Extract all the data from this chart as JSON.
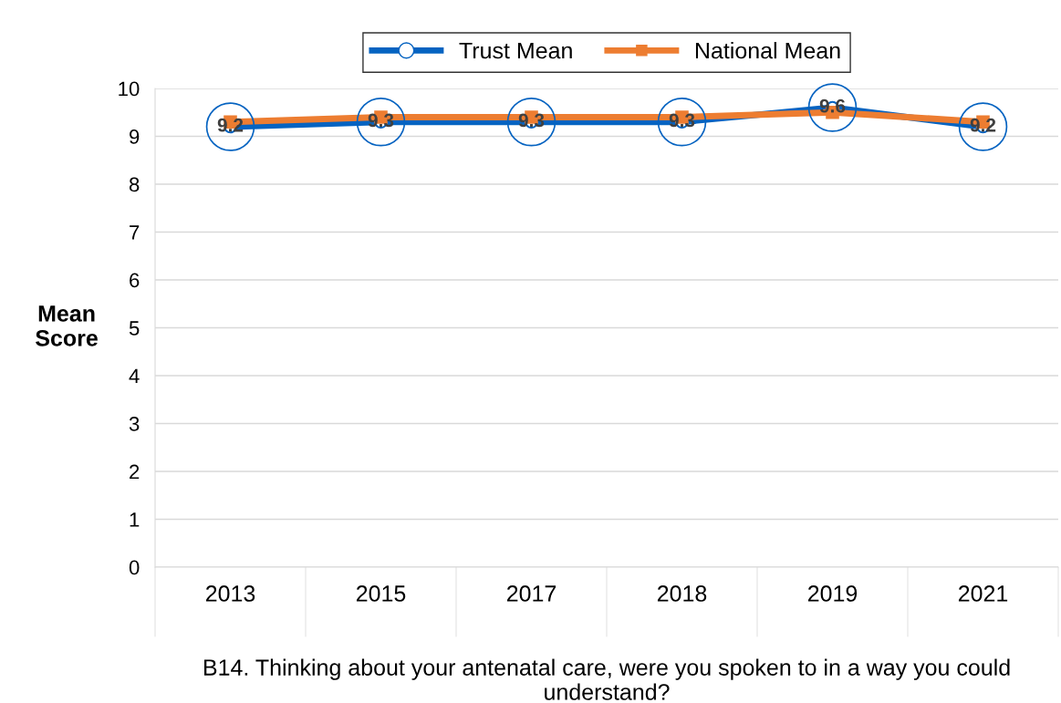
{
  "chart_data": {
    "type": "line",
    "xlabel": "B14. Thinking about your antenatal care, were you spoken to in a way you could understand?",
    "ylabel": "Mean\nScore",
    "categories": [
      "2013",
      "2015",
      "2017",
      "2018",
      "2019",
      "2021"
    ],
    "series": [
      {
        "name": "Trust Mean",
        "color": "#0563c1",
        "values": [
          9.2,
          9.3,
          9.3,
          9.3,
          9.6,
          9.2
        ],
        "marker": "circle",
        "value_labels": [
          "9.2",
          "9.3",
          "9.3",
          "9.3",
          "9.6",
          "9.2"
        ]
      },
      {
        "name": "National Mean",
        "color": "#ed7d31",
        "values": [
          9.3,
          9.4,
          9.4,
          9.4,
          9.5,
          9.3
        ],
        "marker": "square"
      }
    ],
    "ylim": [
      0,
      10
    ],
    "yticks": [
      0,
      1,
      2,
      3,
      4,
      5,
      6,
      7,
      8,
      9,
      10
    ],
    "grid": "y",
    "legend": "top",
    "line_style": "solid"
  }
}
